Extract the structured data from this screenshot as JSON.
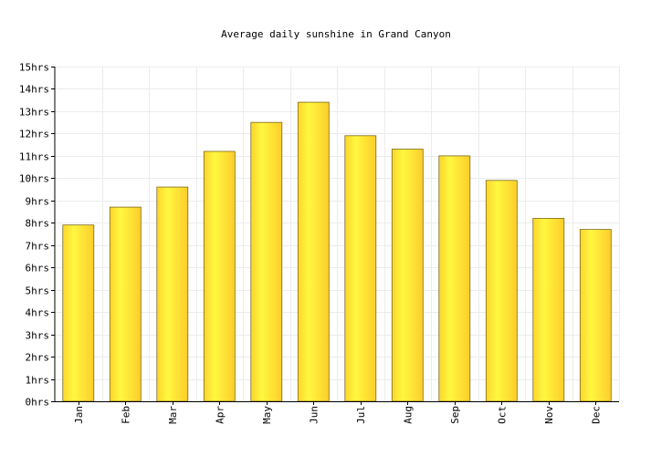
{
  "chart_data": {
    "type": "bar",
    "title": "Average daily sunshine in Grand Canyon",
    "xlabel": "",
    "ylabel": "",
    "ylim": [
      0,
      15
    ],
    "y_tick_suffix": "hrs",
    "grid": true,
    "categories": [
      "Jan",
      "Feb",
      "Mar",
      "Apr",
      "May",
      "Jun",
      "Jul",
      "Aug",
      "Sep",
      "Oct",
      "Nov",
      "Dec"
    ],
    "values": [
      7.9,
      8.7,
      9.6,
      11.2,
      12.5,
      13.4,
      11.9,
      11.3,
      11.0,
      9.9,
      8.2,
      7.7
    ],
    "colors": {
      "bar_light": "#fff740",
      "bar_dark": "#fdd52e",
      "bar_stroke": "#7a6a1a",
      "grid": "#ececec",
      "axis": "#000000"
    }
  }
}
